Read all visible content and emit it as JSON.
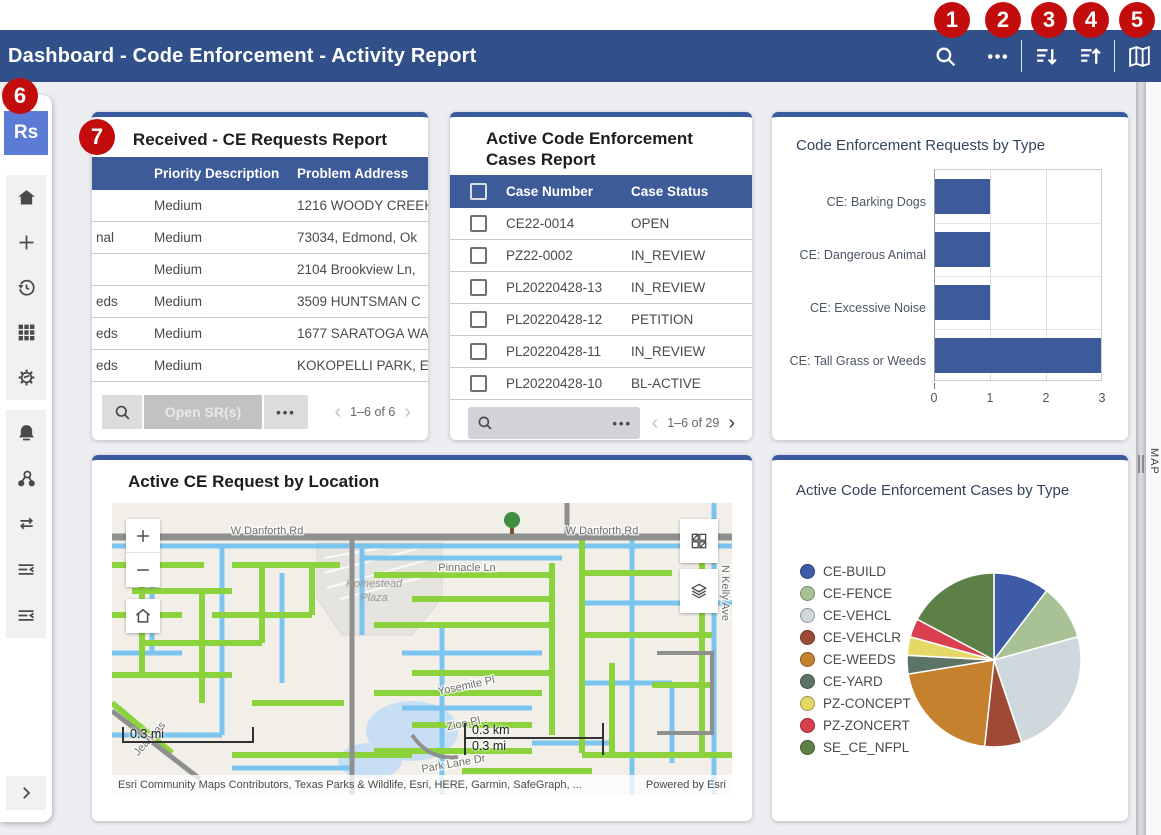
{
  "topbar": {
    "title": "Dashboard - Code Enforcement - Activity Report",
    "icons": [
      "search",
      "more",
      "sort-descending",
      "sort-ascending",
      "map"
    ]
  },
  "callouts": {
    "c1": "1",
    "c2": "2",
    "c3": "3",
    "c4": "4",
    "c5": "5",
    "c6": "6",
    "c7": "7"
  },
  "sidebar": {
    "avatar_text": "Rs"
  },
  "received_report": {
    "title": "Received - CE Requests Report",
    "columns": {
      "col0": "",
      "priority": "Priority Description",
      "address": "Problem Address"
    },
    "rows": [
      {
        "c0": "",
        "priority": "Medium",
        "address": "1216 WOODY CREEK"
      },
      {
        "c0": "nal",
        "priority": "Medium",
        "address": "73034, Edmond, Ok"
      },
      {
        "c0": "",
        "priority": "Medium",
        "address": "2104 Brookview Ln,"
      },
      {
        "c0": "eds",
        "priority": "Medium",
        "address": "3509 HUNTSMAN C"
      },
      {
        "c0": "eds",
        "priority": "Medium",
        "address": "1677 SARATOGA WA"
      },
      {
        "c0": "eds",
        "priority": "Medium",
        "address": "KOKOPELLI PARK, E"
      }
    ],
    "footer": {
      "open_button": "Open SR(s)",
      "more": "•••",
      "prev": "‹",
      "pagination": "1–6 of 6",
      "next": "›"
    }
  },
  "active_cases_report": {
    "title": "Active Code Enforcement Cases Report",
    "columns": {
      "case_number": "Case Number",
      "case_status": "Case Status"
    },
    "rows": [
      {
        "number": "CE22-0014",
        "status": "OPEN"
      },
      {
        "number": "PZ22-0002",
        "status": "IN_REVIEW"
      },
      {
        "number": "PL20220428-13",
        "status": "IN_REVIEW"
      },
      {
        "number": "PL20220428-12",
        "status": "PETITION"
      },
      {
        "number": "PL20220428-11",
        "status": "IN_REVIEW"
      },
      {
        "number": "PL20220428-10",
        "status": "BL-ACTIVE"
      }
    ],
    "footer": {
      "more": "•••",
      "prev": "‹",
      "pagination": "1–6 of 29",
      "next": "›"
    }
  },
  "map_panel": {
    "title": "Active CE Request by Location",
    "street_labels": {
      "danforth_left": "W Danforth Rd",
      "danforth_right": "W Danforth Rd",
      "pinnacle": "Pinnacle Ln",
      "homestead_1": "Homestead",
      "homestead_2": "Plaza",
      "yosemite": "Yosemite Pl",
      "zion": "Zion Pl",
      "park_lane": "Park Lane Dr",
      "jeannas": "Jeannas",
      "n_kelly": "N Kelly Ave"
    },
    "scalebar": {
      "mi_left": "0.3 mi",
      "km": "0.3 km",
      "mi": "0.3 mi"
    },
    "attribution": "Esri Community Maps Contributors, Texas Parks & Wildlife, Esri, HERE, Garmin, SafeGraph, ...",
    "powered_by": "Powered by Esri"
  },
  "right_rail": {
    "tab_label": "MAP"
  },
  "chart_data": [
    {
      "type": "bar",
      "orientation": "horizontal",
      "title": "Code Enforcement Requests by Type",
      "categories": [
        "CE: Barking Dogs",
        "CE: Dangerous Animal",
        "CE: Excessive Noise",
        "CE: Tall Grass or Weeds"
      ],
      "values": [
        1,
        1,
        1,
        3
      ],
      "xlim": [
        0,
        3
      ],
      "xticks": [
        "0",
        "1",
        "2",
        "3"
      ],
      "bar_color": "#3D5B9B",
      "grid": true,
      "legend_position": "none"
    },
    {
      "type": "pie",
      "title": "Active Code Enforcement Cases by Type",
      "labels": [
        "CE-BUILD",
        "CE-FENCE",
        "CE-VEHCL",
        "CE-VEHCLR",
        "CE-WEEDS",
        "CE-YARD",
        "PZ-CONCEPT",
        "PZ-ZONCERT",
        "SE_CE_NFPL"
      ],
      "values": [
        3,
        3,
        7,
        2,
        6,
        1,
        1,
        1,
        5
      ],
      "colors": [
        "#3D5BA6",
        "#A9C295",
        "#CFD8DC",
        "#9E4A36",
        "#C5812E",
        "#5D7365",
        "#E5D867",
        "#D93F4C",
        "#5C8046"
      ],
      "legend_position": "left",
      "start_angle_deg": -90,
      "direction": "clockwise"
    }
  ],
  "colors": {
    "topbar": "#315089",
    "accent_border": "#3A5A9F",
    "table_header": "#3D5A99",
    "badge_red": "#C30D0D",
    "avatar_blue": "#5B7BD5",
    "bar_blue": "#3D5B9B"
  }
}
